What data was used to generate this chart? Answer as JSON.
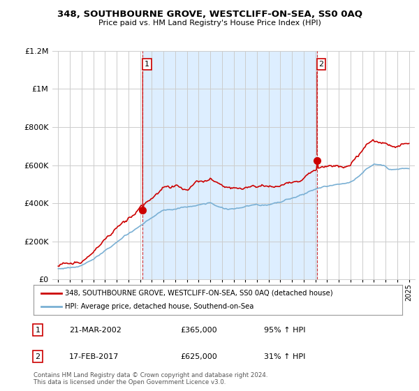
{
  "title": "348, SOUTHBOURNE GROVE, WESTCLIFF-ON-SEA, SS0 0AQ",
  "subtitle": "Price paid vs. HM Land Registry's House Price Index (HPI)",
  "legend_line1": "348, SOUTHBOURNE GROVE, WESTCLIFF-ON-SEA, SS0 0AQ (detached house)",
  "legend_line2": "HPI: Average price, detached house, Southend-on-Sea",
  "footnote": "Contains HM Land Registry data © Crown copyright and database right 2024.\nThis data is licensed under the Open Government Licence v3.0.",
  "point1_date": "21-MAR-2002",
  "point1_price": "£365,000",
  "point1_hpi": "95% ↑ HPI",
  "point2_date": "17-FEB-2017",
  "point2_price": "£625,000",
  "point2_hpi": "31% ↑ HPI",
  "red_color": "#cc0000",
  "blue_color": "#7ab0d4",
  "shade_color": "#ddeeff",
  "background_color": "#ffffff",
  "plot_bg_color": "#ffffff",
  "ylim": [
    0,
    1200000
  ],
  "yticks": [
    0,
    200000,
    400000,
    600000,
    800000,
    1000000,
    1200000
  ],
  "xlim_start": 1994.5,
  "xlim_end": 2025.5,
  "p1_x": 2002.22,
  "p1_y": 365000,
  "p2_x": 2017.13,
  "p2_y": 625000
}
